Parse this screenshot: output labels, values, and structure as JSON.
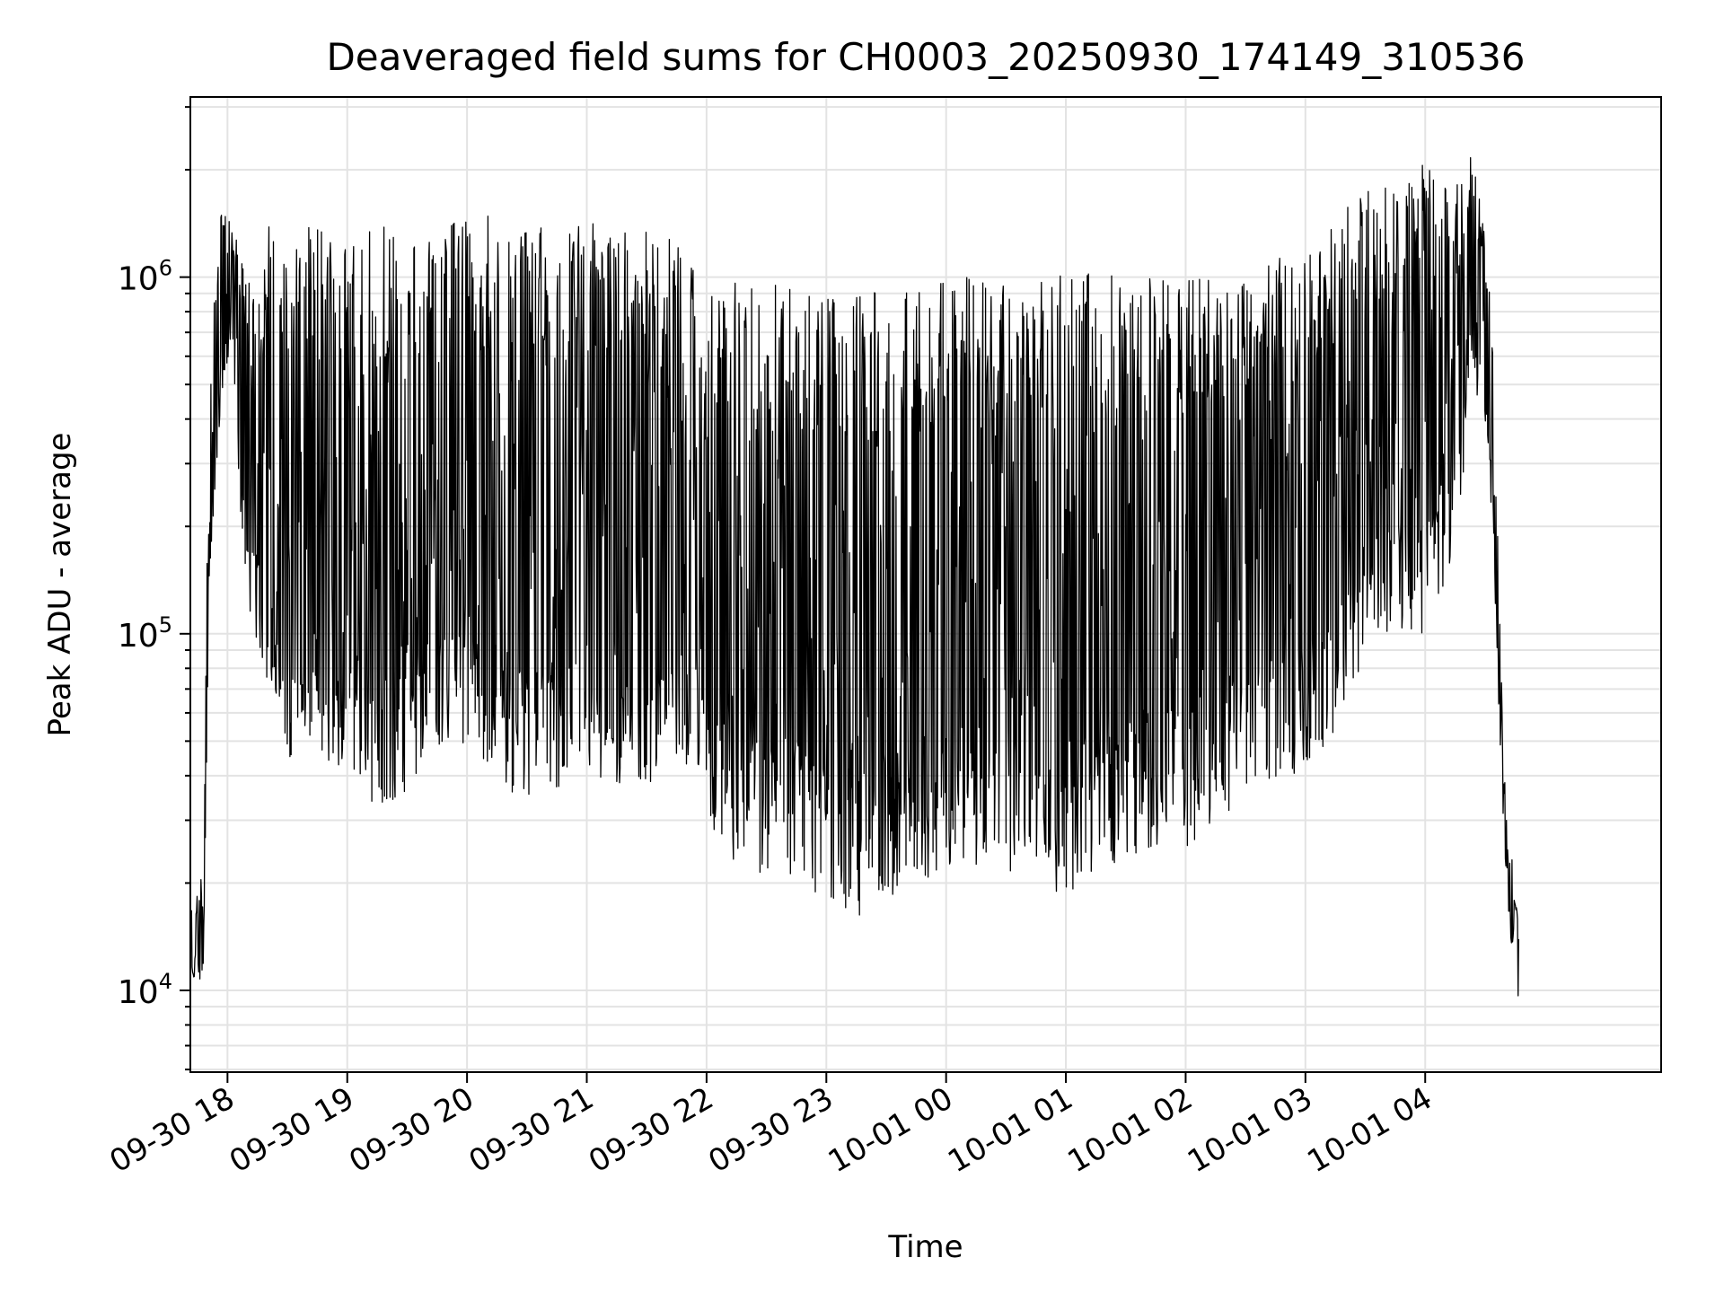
{
  "chart_data": {
    "type": "line",
    "title": "Deaveraged field sums for CH0003_20250930_174149_310536",
    "xlabel": "Time",
    "ylabel": "Peak ADU - average",
    "yscale": "log",
    "ylim": [
      5900,
      3200000
    ],
    "xlim_hours": [
      17.69,
      29.97
    ],
    "x_ticks": [
      {
        "label": "09-30 18",
        "hour": 18
      },
      {
        "label": "09-30 19",
        "hour": 19
      },
      {
        "label": "09-30 20",
        "hour": 20
      },
      {
        "label": "09-30 21",
        "hour": 21
      },
      {
        "label": "09-30 22",
        "hour": 22
      },
      {
        "label": "09-30 23",
        "hour": 23
      },
      {
        "label": "10-01 00",
        "hour": 24
      },
      {
        "label": "10-01 01",
        "hour": 25
      },
      {
        "label": "10-01 02",
        "hour": 26
      },
      {
        "label": "10-01 03",
        "hour": 27
      },
      {
        "label": "10-01 04",
        "hour": 28
      }
    ],
    "y_ticks": [
      {
        "base": "10",
        "exp": "4",
        "value": 10000
      },
      {
        "base": "10",
        "exp": "5",
        "value": 100000
      },
      {
        "base": "10",
        "exp": "6",
        "value": 1000000
      }
    ],
    "grid": true,
    "series": [
      {
        "name": "Deaveraged field sums",
        "color": "#000000",
        "envelope": [
          {
            "hour": 17.7,
            "low": 11000,
            "high": 17000
          },
          {
            "hour": 17.8,
            "low": 10500,
            "high": 22000
          },
          {
            "hour": 17.85,
            "low": 150000,
            "high": 800000
          },
          {
            "hour": 17.95,
            "low": 450000,
            "high": 1600000
          },
          {
            "hour": 18.05,
            "low": 600000,
            "high": 1350000
          },
          {
            "hour": 18.12,
            "low": 150000,
            "high": 1400000
          },
          {
            "hour": 18.2,
            "low": 110000,
            "high": 850000
          },
          {
            "hour": 18.35,
            "low": 70000,
            "high": 1400000
          },
          {
            "hour": 18.55,
            "low": 42000,
            "high": 1400000
          },
          {
            "hour": 19.0,
            "low": 43000,
            "high": 1400000
          },
          {
            "hour": 19.3,
            "low": 30000,
            "high": 1400000
          },
          {
            "hour": 19.7,
            "low": 38000,
            "high": 1300000
          },
          {
            "hour": 20.0,
            "low": 50000,
            "high": 1500000
          },
          {
            "hour": 20.5,
            "low": 32000,
            "high": 1450000
          },
          {
            "hour": 21.0,
            "low": 36000,
            "high": 1450000
          },
          {
            "hour": 21.5,
            "low": 37000,
            "high": 1350000
          },
          {
            "hour": 21.9,
            "low": 44000,
            "high": 1200000
          },
          {
            "hour": 22.1,
            "low": 24000,
            "high": 1000000
          },
          {
            "hour": 22.5,
            "low": 20000,
            "high": 950000
          },
          {
            "hour": 23.0,
            "low": 18000,
            "high": 950000
          },
          {
            "hour": 23.3,
            "low": 15500,
            "high": 900000
          },
          {
            "hour": 23.7,
            "low": 19000,
            "high": 950000
          },
          {
            "hour": 24.0,
            "low": 22000,
            "high": 1000000
          },
          {
            "hour": 24.5,
            "low": 21000,
            "high": 1050000
          },
          {
            "hour": 25.0,
            "low": 18000,
            "high": 1050000
          },
          {
            "hour": 25.5,
            "low": 24000,
            "high": 1000000
          },
          {
            "hour": 26.0,
            "low": 25000,
            "high": 1000000
          },
          {
            "hour": 26.5,
            "low": 35000,
            "high": 1050000
          },
          {
            "hour": 27.0,
            "low": 40000,
            "high": 1200000
          },
          {
            "hour": 27.3,
            "low": 55000,
            "high": 1600000
          },
          {
            "hour": 27.6,
            "low": 100000,
            "high": 1900000
          },
          {
            "hour": 28.0,
            "low": 90000,
            "high": 2100000
          },
          {
            "hour": 28.25,
            "low": 150000,
            "high": 1800000
          },
          {
            "hour": 28.38,
            "low": 500000,
            "high": 2500000
          },
          {
            "hour": 28.5,
            "low": 400000,
            "high": 1300000
          },
          {
            "hour": 28.56,
            "low": 200000,
            "high": 800000
          },
          {
            "hour": 28.66,
            "low": 22000,
            "high": 40000
          },
          {
            "hour": 28.78,
            "low": 7800,
            "high": 16000
          }
        ]
      }
    ]
  }
}
